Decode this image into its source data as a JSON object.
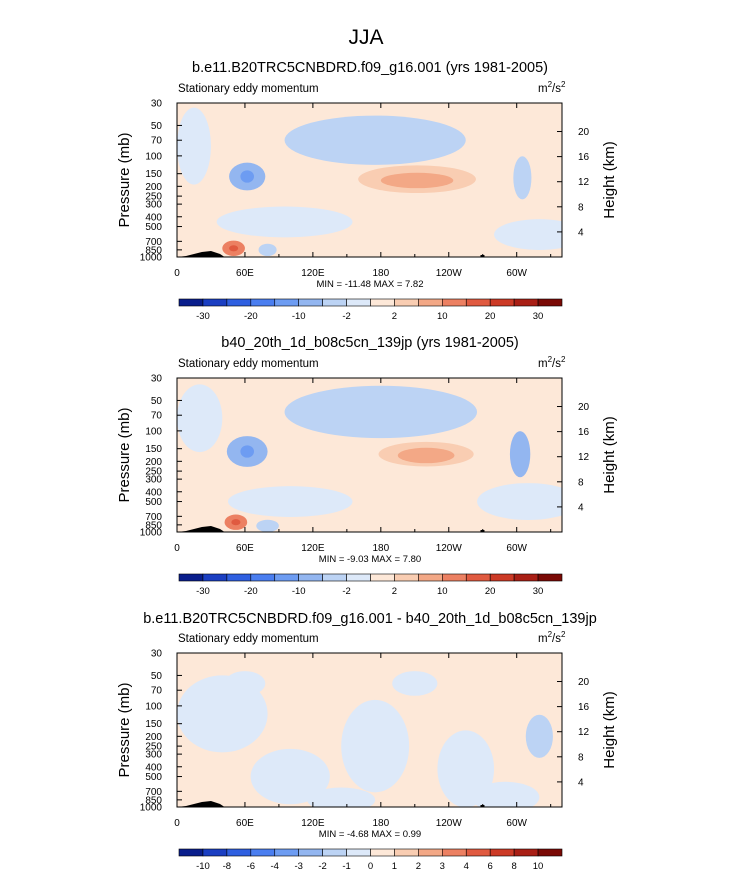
{
  "figure": {
    "title": "JJA",
    "field_label": "Stationary eddy momentum",
    "units": "m²/s²",
    "left_axis_label": "Pressure (mb)",
    "right_axis_label": "Height (km)",
    "pressure_ticks": [
      "30",
      "50",
      "70",
      "100",
      "150",
      "200",
      "250",
      "300",
      "400",
      "500",
      "700",
      "850",
      "1000"
    ],
    "pressure_values": [
      30,
      50,
      70,
      100,
      150,
      200,
      250,
      300,
      400,
      500,
      700,
      850,
      1000
    ],
    "height_ticks": [
      "20",
      "16",
      "12",
      "8",
      "4"
    ],
    "height_values": [
      20,
      16,
      12,
      8,
      4
    ],
    "lon_ticks": [
      "0",
      "60E",
      "120E",
      "180",
      "120W",
      "60W"
    ],
    "lon_values": [
      0,
      60,
      120,
      180,
      240,
      300
    ]
  },
  "chart_data": [
    {
      "type": "heatmap",
      "title": "b.e11.B20TRC5CNBDRD.f09_g16.001 (yrs 1981-2005)",
      "subtitle": "Stationary eddy momentum",
      "xlabel": "",
      "ylabel": "Pressure (mb)",
      "xlim": [
        0,
        340
      ],
      "ylim": [
        1000,
        30
      ],
      "stats": "MIN = -11.48   MAX =  7.82",
      "min": -11.48,
      "max": 7.82,
      "colorbar": {
        "labels": [
          "-30",
          "-20",
          "-10",
          "-2",
          "2",
          "10",
          "20",
          "30"
        ],
        "colors": [
          "#0a1e8c",
          "#1b3fc2",
          "#2f5fe0",
          "#4a7ef0",
          "#6d9cf2",
          "#93b6f0",
          "#bcd3f4",
          "#dde9f9",
          "#fde8d8",
          "#f9cdb2",
          "#f3a886",
          "#ec8062",
          "#e05a40",
          "#cc3a26",
          "#a91f15",
          "#7a0a05"
        ]
      }
    },
    {
      "type": "heatmap",
      "title": "b40_20th_1d_b08c5cn_139jp (yrs 1981-2005)",
      "subtitle": "Stationary eddy momentum",
      "xlabel": "",
      "ylabel": "Pressure (mb)",
      "xlim": [
        0,
        340
      ],
      "ylim": [
        1000,
        30
      ],
      "stats": "MIN =  -9.03   MAX =  7.80",
      "min": -9.03,
      "max": 7.8,
      "colorbar": {
        "labels": [
          "-30",
          "-20",
          "-10",
          "-2",
          "2",
          "10",
          "20",
          "30"
        ],
        "colors": [
          "#0a1e8c",
          "#1b3fc2",
          "#2f5fe0",
          "#4a7ef0",
          "#6d9cf2",
          "#93b6f0",
          "#bcd3f4",
          "#dde9f9",
          "#fde8d8",
          "#f9cdb2",
          "#f3a886",
          "#ec8062",
          "#e05a40",
          "#cc3a26",
          "#a91f15",
          "#7a0a05"
        ]
      }
    },
    {
      "type": "heatmap",
      "title": "b.e11.B20TRC5CNBDRD.f09_g16.001 - b40_20th_1d_b08c5cn_139jp",
      "subtitle": "Stationary eddy momentum",
      "xlabel": "",
      "ylabel": "Pressure (mb)",
      "xlim": [
        0,
        340
      ],
      "ylim": [
        1000,
        30
      ],
      "stats": "MIN =  -4.68   MAX =  0.99",
      "min": -4.68,
      "max": 0.99,
      "colorbar": {
        "labels": [
          "-10",
          "-8",
          "-6",
          "-4",
          "-3",
          "-2",
          "-1",
          "0",
          "1",
          "2",
          "3",
          "4",
          "6",
          "8",
          "10"
        ],
        "colors": [
          "#0a1e8c",
          "#1b3fc2",
          "#2f5fe0",
          "#4a7ef0",
          "#6d9cf2",
          "#93b6f0",
          "#bcd3f4",
          "#dde9f9",
          "#fde8d8",
          "#f9cdb2",
          "#f3a886",
          "#ec8062",
          "#e05a40",
          "#cc3a26",
          "#a91f15",
          "#7a0a05"
        ]
      }
    }
  ]
}
